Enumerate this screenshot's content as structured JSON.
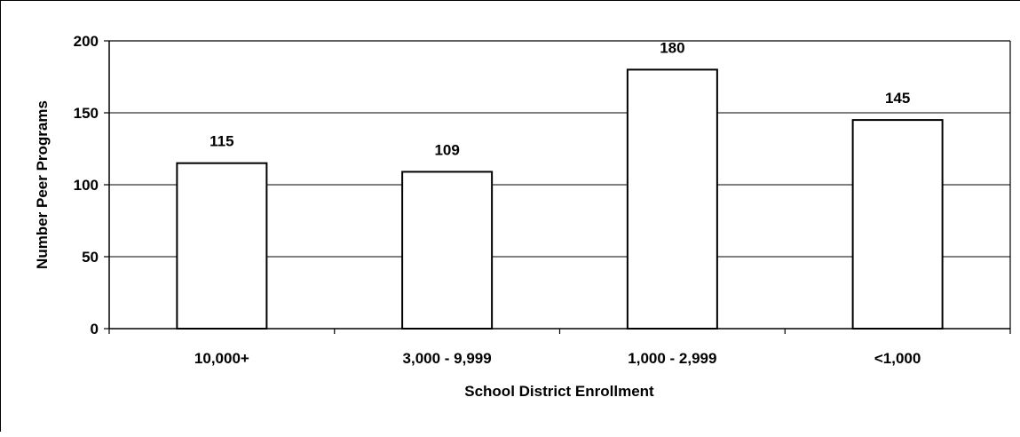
{
  "chart_data": {
    "type": "bar",
    "categories": [
      "10,000+",
      "3,000 - 9,999",
      "1,000 - 2,999",
      "<1,000"
    ],
    "values": [
      115,
      109,
      180,
      145
    ],
    "data_labels": [
      "115",
      "109",
      "180",
      "145"
    ],
    "title": "",
    "xlabel": "School District Enrollment",
    "ylabel": "Number Peer Programs",
    "ylim": [
      0,
      200
    ],
    "yticks": [
      0,
      50,
      100,
      150,
      200
    ],
    "grid": true,
    "legend": "none",
    "bar_fill": "#ffffff",
    "bar_stroke": "#000000"
  }
}
